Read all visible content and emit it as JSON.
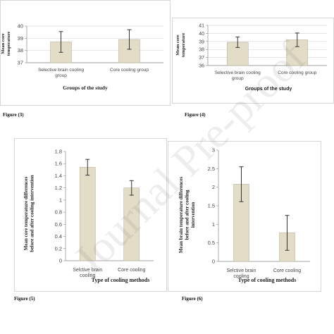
{
  "watermark": "Journal Pre-proof",
  "figures": [
    {
      "caption": "Figure (3)"
    },
    {
      "caption": "Figure (4)"
    },
    {
      "caption": "Figure (5)"
    },
    {
      "caption": "Figure (6)"
    }
  ],
  "chart_data": [
    {
      "type": "bar",
      "categories": [
        "Selective brain cooling group",
        "Core cooling group"
      ],
      "values": [
        38.7,
        38.9
      ],
      "error": [
        0.85,
        0.8
      ],
      "xlabel": "Groups of the study",
      "ylabel": "Mean core temperature",
      "ylim": [
        37,
        40
      ],
      "yticks": [
        "37",
        "38",
        "39",
        "40"
      ],
      "grid": true,
      "bar_color": "#e3ddc8"
    },
    {
      "type": "bar",
      "categories": [
        "Selective brain cooling group",
        "Core cooling group"
      ],
      "values": [
        38.9,
        39.2
      ],
      "error": [
        0.65,
        0.85
      ],
      "xlabel": "Groups of the study",
      "ylabel": "Mean core temperature",
      "ylim": [
        36,
        41
      ],
      "yticks": [
        "36",
        "37",
        "38",
        "39",
        "40",
        "41"
      ],
      "grid": true,
      "bar_color": "#e3ddc8"
    },
    {
      "type": "bar",
      "categories": [
        "Selctive brain cooling",
        "Core cooling"
      ],
      "values": [
        1.54,
        1.2
      ],
      "error": [
        0.13,
        0.12
      ],
      "xlabel": "Type of cooling methods",
      "ylabel": "Mean core temperature differences before and after cooling intervention",
      "ylim": [
        0,
        1.8
      ],
      "yticks": [
        "0",
        "0.2",
        "0.4",
        "0.6",
        "0.8",
        "1",
        "1.2",
        "1.4",
        "1.6",
        "1.8"
      ],
      "grid": false,
      "bar_color": "#e3ddc8"
    },
    {
      "type": "bar",
      "categories": [
        "Selctive brain cooling",
        "Core cooling"
      ],
      "values": [
        2.08,
        0.77
      ],
      "error": [
        0.47,
        0.47
      ],
      "xlabel": "Type of cooling methods",
      "ylabel": "Mean brain temperature differences before and after cooling intervention",
      "ylim": [
        0,
        3
      ],
      "yticks": [
        "0",
        "0.5",
        "1",
        "1.5",
        "2",
        "2.5",
        "3"
      ],
      "grid": false,
      "bar_color": "#e3ddc8"
    }
  ]
}
